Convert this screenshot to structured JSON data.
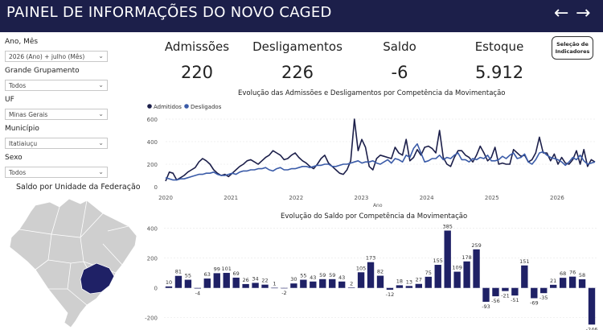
{
  "header": {
    "title": "PAINEL DE INFORMAÇÕES DO NOVO CAGED",
    "back_icon": "←",
    "forward_icon": "→",
    "bg_color": "#1c1f4a"
  },
  "filters": [
    {
      "label": "Ano, Mês",
      "value": "2026 (Ano) + julho (Mês)"
    },
    {
      "label": "Grande Grupamento",
      "value": "Todos"
    },
    {
      "label": "UF",
      "value": "Minas Gerais"
    },
    {
      "label": "Município",
      "value": "Itatiaiuçu"
    },
    {
      "label": "Sexo",
      "value": "Todos"
    }
  ],
  "map": {
    "title": "Saldo por Unidade da Federação",
    "highlight_color": "#1f2166"
  },
  "kpis": [
    {
      "label": "Admissões",
      "value": "220"
    },
    {
      "label": "Desligamentos",
      "value": "226"
    },
    {
      "label": "Saldo",
      "value": "-6"
    },
    {
      "label": "Estoque",
      "value": "5.912"
    }
  ],
  "indicator_button": {
    "line1": "Seleção de",
    "line2": "Indicadores"
  },
  "line_chart_title": "Evolução das Admissões e Desligamentos por Competência da Movimentação",
  "bar_chart_title": "Evolução do Saldo por Competência da Movimentação",
  "chart_data": [
    {
      "type": "line",
      "title": "Evolução das Admissões e Desligamentos por Competência da Movimentação",
      "xlabel": "Ano",
      "ylabel": "",
      "x_ticks": [
        "2020",
        "2021",
        "2022",
        "2023",
        "2024",
        "2025",
        "2026"
      ],
      "x_range": [
        2020,
        2026.58
      ],
      "ylim": [
        0,
        600
      ],
      "y_ticks": [
        0,
        200,
        400,
        600
      ],
      "legend_position": "top-left",
      "series": [
        {
          "name": "Admitidos",
          "color": "#1c1f4a",
          "values": [
            50,
            130,
            120,
            60,
            80,
            100,
            130,
            150,
            170,
            220,
            250,
            230,
            200,
            150,
            120,
            100,
            110,
            90,
            120,
            150,
            180,
            200,
            230,
            240,
            220,
            200,
            230,
            260,
            280,
            320,
            300,
            280,
            240,
            250,
            280,
            300,
            260,
            230,
            210,
            180,
            160,
            200,
            250,
            280,
            210,
            180,
            150,
            120,
            110,
            150,
            230,
            600,
            320,
            420,
            350,
            180,
            150,
            250,
            280,
            270,
            260,
            250,
            350,
            300,
            280,
            420,
            230,
            260,
            330,
            280,
            350,
            360,
            340,
            300,
            500,
            260,
            200,
            180,
            260,
            320,
            320,
            280,
            260,
            220,
            280,
            360,
            300,
            230,
            260,
            350,
            200,
            210,
            200,
            200,
            330,
            300,
            270,
            280,
            220,
            240,
            300,
            440,
            300,
            300,
            230,
            290,
            200,
            260,
            210,
            200,
            240,
            320,
            200,
            330,
            180,
            240,
            220
          ]
        },
        {
          "name": "Desligados",
          "color": "#3a5ba8",
          "values": [
            80,
            70,
            60,
            60,
            70,
            70,
            80,
            90,
            100,
            110,
            110,
            120,
            120,
            130,
            110,
            100,
            100,
            110,
            120,
            110,
            130,
            140,
            140,
            150,
            150,
            160,
            160,
            170,
            150,
            140,
            160,
            170,
            150,
            150,
            160,
            160,
            170,
            180,
            180,
            170,
            180,
            190,
            190,
            200,
            200,
            180,
            180,
            190,
            200,
            200,
            210,
            220,
            230,
            210,
            220,
            220,
            230,
            210,
            200,
            220,
            240,
            210,
            250,
            240,
            220,
            280,
            260,
            340,
            380,
            300,
            220,
            230,
            250,
            250,
            280,
            240,
            260,
            250,
            280,
            300,
            240,
            240,
            220,
            250,
            240,
            260,
            250,
            280,
            230,
            230,
            240,
            270,
            250,
            280,
            300,
            250,
            260,
            290,
            220,
            200,
            240,
            300,
            310,
            280,
            260,
            250,
            240,
            220,
            190,
            220,
            260,
            240,
            280,
            230,
            200,
            210,
            220
          ]
        }
      ]
    },
    {
      "type": "bar",
      "title": "Evolução do Saldo por Competência da Movimentação",
      "xlabel": "",
      "ylabel": "",
      "ylim": [
        -250,
        420
      ],
      "y_ticks": [
        -200,
        0,
        200,
        400
      ],
      "grid": true,
      "series": [
        {
          "name": "",
          "color": "#1f2166",
          "values": [
            10,
            81,
            55,
            -4,
            63,
            99,
            101,
            69,
            26,
            34,
            22,
            1,
            -2,
            30,
            55,
            43,
            59,
            59,
            43,
            2,
            105,
            173,
            82,
            -12,
            18,
            13,
            27,
            75,
            155,
            385,
            109,
            178,
            259,
            -93,
            -56,
            -21,
            -51,
            151,
            -69,
            -35,
            21,
            68,
            76,
            58,
            -246
          ]
        }
      ]
    }
  ]
}
